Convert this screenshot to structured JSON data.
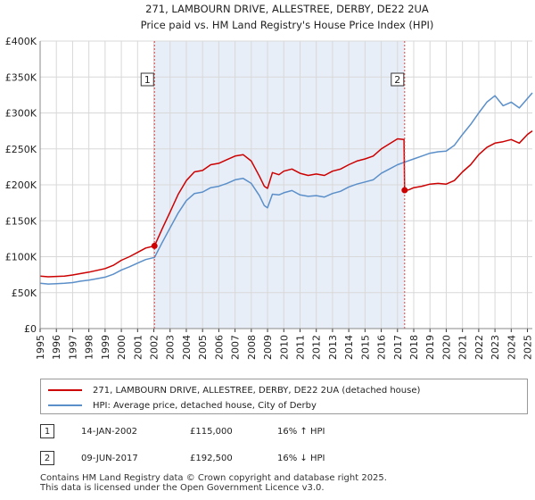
{
  "chart_data": {
    "type": "line",
    "title_line1": "271, LAMBOURN DRIVE, ALLESTREE, DERBY, DE22 2UA",
    "title_line2": "Price paid vs. HM Land Registry's House Price Index (HPI)",
    "xlim": [
      1995,
      2025.3
    ],
    "ylim": [
      0,
      400000
    ],
    "x_ticks": [
      "1995",
      "1996",
      "1997",
      "1998",
      "1999",
      "2000",
      "2001",
      "2002",
      "2003",
      "2004",
      "2005",
      "2006",
      "2007",
      "2008",
      "2009",
      "2010",
      "2011",
      "2012",
      "2013",
      "2014",
      "2015",
      "2016",
      "2017",
      "2018",
      "2019",
      "2020",
      "2021",
      "2022",
      "2023",
      "2024",
      "2025"
    ],
    "y_ticks": [
      {
        "value": 0,
        "label": "£0"
      },
      {
        "value": 50000,
        "label": "£50K"
      },
      {
        "value": 100000,
        "label": "£100K"
      },
      {
        "value": 150000,
        "label": "£150K"
      },
      {
        "value": 200000,
        "label": "£200K"
      },
      {
        "value": 250000,
        "label": "£250K"
      },
      {
        "value": 300000,
        "label": "£300K"
      },
      {
        "value": 350000,
        "label": "£350K"
      },
      {
        "value": 400000,
        "label": "£400K"
      }
    ],
    "shaded_range": [
      2002.04,
      2017.44
    ],
    "colors": {
      "property": "#cc0000",
      "hpi": "#5b8fc9",
      "shade": "#e8eef8",
      "marker_line": "#dd4444"
    },
    "series": [
      {
        "name": "271, LAMBOURN DRIVE, ALLESTREE, DERBY, DE22 2UA (detached house)",
        "x": [
          1995,
          1995.5,
          1996,
          1996.5,
          1997,
          1997.5,
          1998,
          1998.5,
          1999,
          1999.5,
          2000,
          2000.5,
          2001,
          2001.5,
          2002.04,
          2002.5,
          2003,
          2003.5,
          2004,
          2004.5,
          2005,
          2005.5,
          2006,
          2006.5,
          2007,
          2007.5,
          2008,
          2008.5,
          2008.8,
          2009,
          2009.3,
          2009.7,
          2010,
          2010.5,
          2011,
          2011.5,
          2012,
          2012.5,
          2013,
          2013.5,
          2014,
          2014.5,
          2015,
          2015.5,
          2016,
          2016.5,
          2017,
          2017.4,
          2017.44,
          2017.7,
          2018,
          2018.5,
          2019,
          2019.5,
          2020,
          2020.5,
          2021,
          2021.5,
          2022,
          2022.5,
          2023,
          2023.5,
          2024,
          2024.5,
          2025,
          2025.3
        ],
        "y": [
          73000,
          72000,
          72500,
          73000,
          74500,
          76500,
          78500,
          81000,
          83500,
          88000,
          95000,
          100000,
          106000,
          112000,
          115000,
          138000,
          162000,
          187000,
          206000,
          218000,
          220000,
          228000,
          230000,
          235000,
          240000,
          242000,
          233000,
          212000,
          198000,
          195000,
          217000,
          214000,
          219000,
          222000,
          216000,
          213000,
          215000,
          213000,
          219000,
          222000,
          228000,
          233000,
          236000,
          240000,
          250000,
          257000,
          264000,
          263000,
          192500,
          193000,
          196000,
          198000,
          201000,
          202000,
          201000,
          206000,
          218000,
          228000,
          242000,
          252000,
          258000,
          260000,
          263000,
          258000,
          270000,
          275000
        ]
      },
      {
        "name": "HPI: Average price, detached house, City of Derby",
        "x": [
          1995,
          1995.5,
          1996,
          1996.5,
          1997,
          1997.5,
          1998,
          1998.5,
          1999,
          1999.5,
          2000,
          2000.5,
          2001,
          2001.5,
          2002.04,
          2002.5,
          2003,
          2003.5,
          2004,
          2004.5,
          2005,
          2005.5,
          2006,
          2006.5,
          2007,
          2007.5,
          2008,
          2008.5,
          2008.8,
          2009,
          2009.3,
          2009.7,
          2010,
          2010.5,
          2011,
          2011.5,
          2012,
          2012.5,
          2013,
          2013.5,
          2014,
          2014.5,
          2015,
          2015.5,
          2016,
          2016.5,
          2017,
          2017.5,
          2018,
          2018.5,
          2019,
          2019.5,
          2020,
          2020.5,
          2021,
          2021.5,
          2022,
          2022.5,
          2023,
          2023.5,
          2024,
          2024.5,
          2025,
          2025.3
        ],
        "y": [
          63000,
          62000,
          62500,
          63000,
          64000,
          66000,
          67500,
          69500,
          71500,
          75500,
          81500,
          86000,
          91000,
          96000,
          99000,
          119000,
          140000,
          161000,
          178000,
          188000,
          190000,
          196000,
          198000,
          202000,
          207000,
          209000,
          202000,
          185000,
          171000,
          168000,
          187000,
          186000,
          189000,
          192000,
          186000,
          184000,
          185000,
          183000,
          188000,
          191000,
          197000,
          201000,
          204000,
          207000,
          216000,
          222000,
          228000,
          232000,
          236000,
          240000,
          244000,
          246000,
          247000,
          255000,
          270000,
          284000,
          300000,
          315000,
          324000,
          310000,
          315000,
          307000,
          320000,
          328000
        ]
      }
    ],
    "markers": [
      {
        "label": "1",
        "x": 2002.04,
        "y": 115000
      },
      {
        "label": "2",
        "x": 2017.44,
        "y": 192500
      }
    ]
  },
  "legend": {
    "property": "271, LAMBOURN DRIVE, ALLESTREE, DERBY, DE22 2UA (detached house)",
    "hpi": "HPI: Average price, detached house, City of Derby"
  },
  "sales": [
    {
      "num": "1",
      "date": "14-JAN-2002",
      "price": "£115,000",
      "hpi": "16% ↑ HPI"
    },
    {
      "num": "2",
      "date": "09-JUN-2017",
      "price": "£192,500",
      "hpi": "16% ↓ HPI"
    }
  ],
  "footer": {
    "line1": "Contains HM Land Registry data © Crown copyright and database right 2025.",
    "line2": "This data is licensed under the Open Government Licence v3.0."
  }
}
